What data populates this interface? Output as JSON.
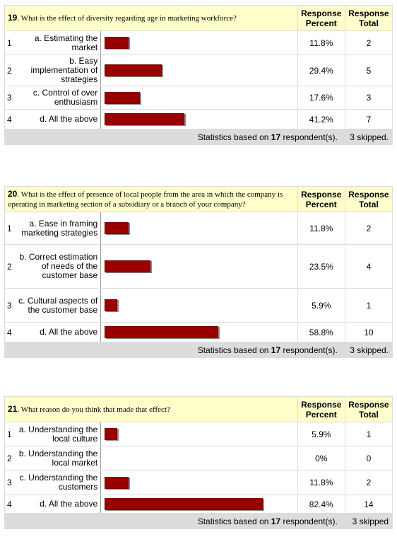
{
  "headers": {
    "percent": "Response Percent",
    "total": "Response Total"
  },
  "stats": {
    "prefix": "Statistics based on",
    "suffix": "respondent(s)."
  },
  "questions": [
    {
      "number": "19",
      "text": ". What is the effect of diversity regarding age in marketing workforce?",
      "respondents": "17",
      "skipped": "3 skipped.",
      "options": [
        {
          "n": "1",
          "label": "a. Estimating the market",
          "percent": "11.8%",
          "pct_value": 11.8,
          "total": "2"
        },
        {
          "n": "2",
          "label": "b. Easy implementation of strategies",
          "percent": "29.4%",
          "pct_value": 29.4,
          "total": "5"
        },
        {
          "n": "3",
          "label": "c. Control of over enthusiasm",
          "percent": "17.6%",
          "pct_value": 17.6,
          "total": "3"
        },
        {
          "n": "4",
          "label": "d. All the above",
          "percent": "41.2%",
          "pct_value": 41.2,
          "total": "7"
        }
      ]
    },
    {
      "number": "20",
      "text": ". What is the effect of presence of local people from the area in which the company is operating in marketing section of a subsidiary or a branch of your company?",
      "respondents": "17",
      "skipped": "3 skipped.",
      "options": [
        {
          "n": "1",
          "label": "a. Ease in framing marketing strategies",
          "percent": "11.8%",
          "pct_value": 11.8,
          "total": "2"
        },
        {
          "n": "2",
          "label": "b. Correct estimation of needs of the customer base",
          "percent": "23.5%",
          "pct_value": 23.5,
          "total": "4"
        },
        {
          "n": "3",
          "label": "c. Cultural aspects of the customer base",
          "percent": "5.9%",
          "pct_value": 5.9,
          "total": "1"
        },
        {
          "n": "4",
          "label": "d. All the above",
          "percent": "58.8%",
          "pct_value": 58.8,
          "total": "10"
        }
      ]
    },
    {
      "number": "21",
      "text": ". What reason do you think that made that effect?",
      "respondents": "17",
      "skipped": "3 skipped",
      "options": [
        {
          "n": "1",
          "label": "a. Understanding the local culture",
          "percent": "5.9%",
          "pct_value": 5.9,
          "total": "1"
        },
        {
          "n": "2",
          "label": "b. Understanding the local market",
          "percent": "0%",
          "pct_value": 0,
          "total": "0"
        },
        {
          "n": "3",
          "label": "c. Understanding the customers",
          "percent": "11.8%",
          "pct_value": 11.8,
          "total": "2"
        },
        {
          "n": "4",
          "label": "d. All the above",
          "percent": "82.4%",
          "pct_value": 82.4,
          "total": "14"
        }
      ]
    }
  ]
}
